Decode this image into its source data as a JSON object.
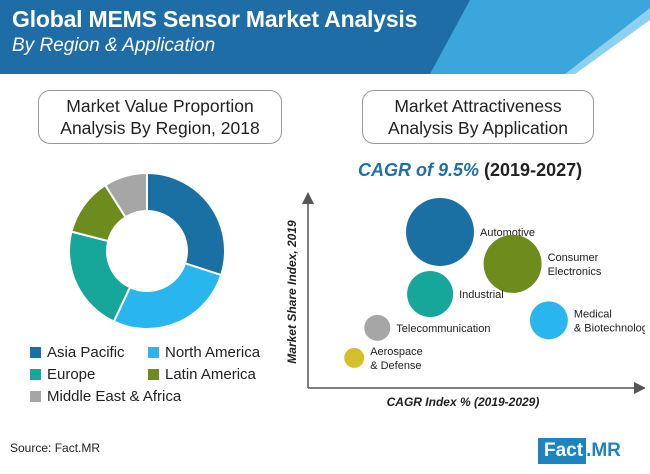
{
  "header": {
    "title": "Global MEMS Sensor Market Analysis",
    "subtitle": "By Region & Application",
    "colors": {
      "dark": "#1e6da6",
      "mid": "#3ba6dc",
      "light": "#8fd0f0"
    }
  },
  "left_panel": {
    "heading_line1": "Market Value Proportion",
    "heading_line2": "Analysis By Region, 2018"
  },
  "right_panel": {
    "heading_line1": "Market Attractiveness",
    "heading_line2": "Analysis By Application",
    "cagr_prefix": "CAGR of 9.5%",
    "cagr_suffix": " (2019-2027)"
  },
  "source": "Source: Fact.MR",
  "brand": {
    "part1": "Fact",
    "part2": ".MR"
  },
  "chart_data": [
    {
      "type": "pie",
      "subtype": "donut",
      "title": "Market Value Proportion Analysis By Region, 2018",
      "slices": [
        {
          "label": "Asia Pacific",
          "value": 30,
          "color": "#1a6fa3"
        },
        {
          "label": "North America",
          "value": 27,
          "color": "#29b6ee"
        },
        {
          "label": "Europe",
          "value": 22,
          "color": "#16a69a"
        },
        {
          "label": "Latin America",
          "value": 12,
          "color": "#6e8b1e"
        },
        {
          "label": "Middle East & Africa",
          "value": 9,
          "color": "#a6a6a6"
        }
      ],
      "legend_placement": "bottom"
    },
    {
      "type": "scatter",
      "subtype": "bubble",
      "title": "Market Attractiveness Analysis By Application",
      "xlabel": "CAGR Index % (2019-2029)",
      "ylabel": "Market Share Index, 2019",
      "xlim": [
        0,
        10
      ],
      "ylim": [
        0,
        10
      ],
      "grid": false,
      "points": [
        {
          "label": "Automotive",
          "x": 4.0,
          "y": 8.3,
          "size": 34,
          "color": "#1a6fa3",
          "label_lines": [
            "Automotive"
          ]
        },
        {
          "label": "Consumer Electronics",
          "x": 6.2,
          "y": 6.6,
          "size": 29,
          "color": "#6e8b1e",
          "label_lines": [
            "Consumer",
            "Electronics"
          ]
        },
        {
          "label": "Industrial",
          "x": 3.7,
          "y": 5.0,
          "size": 23,
          "color": "#16a69a",
          "label_lines": [
            "Industrial"
          ]
        },
        {
          "label": "Medical & Biotechnology",
          "x": 7.3,
          "y": 3.6,
          "size": 19,
          "color": "#29b6ee",
          "label_lines": [
            "Medical",
            "& Biotechnology"
          ]
        },
        {
          "label": "Telecommunication",
          "x": 2.1,
          "y": 3.2,
          "size": 13,
          "color": "#a6a6a6",
          "label_lines": [
            "Telecommunication"
          ]
        },
        {
          "label": "Aerospace & Defense",
          "x": 1.4,
          "y": 1.6,
          "size": 10,
          "color": "#d4c02a",
          "label_lines": [
            "Aerospace",
            "& Defense"
          ]
        }
      ]
    }
  ]
}
